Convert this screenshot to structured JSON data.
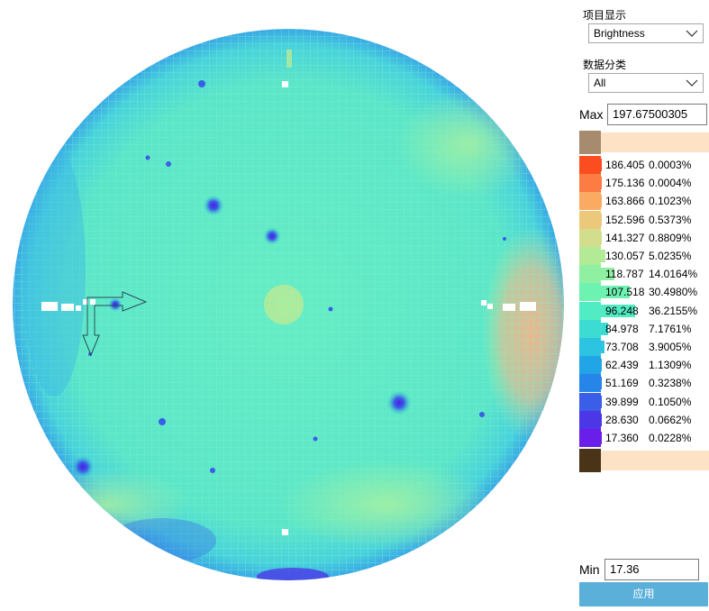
{
  "panel": {
    "display_item_label": "项目显示",
    "display_item_value": "Brightness",
    "category_label": "数据分类",
    "category_value": "All",
    "max_label": "Max",
    "max_value": "197.67500305",
    "min_label": "Min",
    "min_value": "17.36",
    "apply_label": "应用"
  },
  "legend": {
    "top_swatch_color": "#a68b6e",
    "bottom_swatch_color": "#4a3418",
    "overflow_bar_color": "#fde2c6",
    "bins": [
      {
        "value": "186.405",
        "percent": "0.0003%",
        "color": "#fb4d1f",
        "fraction": 0.0003
      },
      {
        "value": "175.136",
        "percent": "0.0004%",
        "color": "#fc7c44",
        "fraction": 0.0004
      },
      {
        "value": "163.866",
        "percent": "0.1023%",
        "color": "#fbaa62",
        "fraction": 0.1023
      },
      {
        "value": "152.596",
        "percent": "0.5373%",
        "color": "#ecc87a",
        "fraction": 0.5373
      },
      {
        "value": "141.327",
        "percent": "0.8809%",
        "color": "#d2de8c",
        "fraction": 0.8809
      },
      {
        "value": "130.057",
        "percent": "5.0235%",
        "color": "#b3ea95",
        "fraction": 5.0235
      },
      {
        "value": "118.787",
        "percent": "14.0164%",
        "color": "#90f0a2",
        "fraction": 14.0164
      },
      {
        "value": "107.518",
        "percent": "30.4980%",
        "color": "#6ef2b2",
        "fraction": 30.498
      },
      {
        "value": "96.248",
        "percent": "36.2155%",
        "color": "#52ecc4",
        "fraction": 36.2155
      },
      {
        "value": "84.978",
        "percent": "7.1761%",
        "color": "#3cdcd2",
        "fraction": 7.1761
      },
      {
        "value": "73.708",
        "percent": "3.9005%",
        "color": "#2cc4e0",
        "fraction": 3.9005
      },
      {
        "value": "62.439",
        "percent": "1.1309%",
        "color": "#21a5e6",
        "fraction": 1.1309
      },
      {
        "value": "51.169",
        "percent": "0.3238%",
        "color": "#2685e9",
        "fraction": 0.3238
      },
      {
        "value": "39.899",
        "percent": "0.1050%",
        "color": "#3a5ee7",
        "fraction": 0.105
      },
      {
        "value": "28.630",
        "percent": "0.0662%",
        "color": "#4b37e6",
        "fraction": 0.0662
      },
      {
        "value": "17.360",
        "percent": "0.0228%",
        "color": "#6a1ee9",
        "fraction": 0.0228
      }
    ]
  },
  "wafer": {
    "base_color": "#5fe8c6",
    "edge_color": "#3fb4e6",
    "warm_zone_color": "#f2b68a",
    "grid_line_color": "#7cf0cf"
  }
}
